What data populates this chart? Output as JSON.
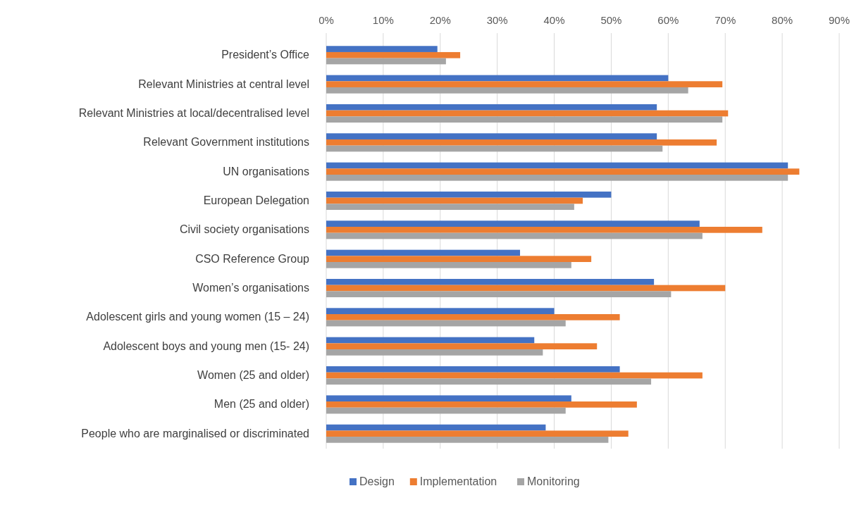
{
  "chart_data": {
    "type": "bar",
    "orientation": "horizontal",
    "categories": [
      "President’s Office",
      "Relevant Ministries at central level",
      "Relevant Ministries at local/decentralised level",
      "Relevant Government institutions",
      "UN organisations",
      "European Delegation",
      "Civil society organisations",
      "CSO Reference Group",
      "Women’s organisations",
      "Adolescent girls and young women (15 – 24)",
      "Adolescent boys and young men (15- 24)",
      "Women (25 and older)",
      "Men (25 and older)",
      "People who are marginalised or discriminated"
    ],
    "series": [
      {
        "name": "Design",
        "color": "#4472c4",
        "values": [
          19.5,
          60,
          58,
          58,
          81,
          50,
          65.5,
          34,
          57.5,
          40,
          36.5,
          51.5,
          43,
          38.5
        ]
      },
      {
        "name": "Implementation",
        "color": "#ed7d31",
        "values": [
          23.5,
          69.5,
          70.5,
          68.5,
          83,
          45,
          76.5,
          46.5,
          70,
          51.5,
          47.5,
          66,
          54.5,
          53
        ]
      },
      {
        "name": "Monitoring",
        "color": "#a5a5a5",
        "values": [
          21,
          63.5,
          69.5,
          59,
          81,
          43.5,
          66,
          43,
          60.5,
          42,
          38,
          57,
          42,
          49.5
        ]
      }
    ],
    "xlim": [
      0,
      90
    ],
    "xticks": [
      {
        "value": 0,
        "label": "0%"
      },
      {
        "value": 10,
        "label": "10%"
      },
      {
        "value": 20,
        "label": "20%"
      },
      {
        "value": 30,
        "label": "30%"
      },
      {
        "value": 40,
        "label": "40%"
      },
      {
        "value": 50,
        "label": "50%"
      },
      {
        "value": 60,
        "label": "60%"
      },
      {
        "value": 70,
        "label": "70%"
      },
      {
        "value": 80,
        "label": "80%"
      },
      {
        "value": 90,
        "label": "90%"
      }
    ],
    "grid": "x",
    "legend": "bottom"
  }
}
